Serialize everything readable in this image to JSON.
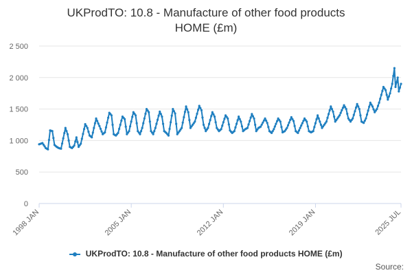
{
  "title_line1": "UKProdTO: 10.8 - Manufacture of other food products",
  "title_line2": "HOME (£m)",
  "legend_label": "UKProdTO: 10.8 - Manufacture of other food products HOME (£m)",
  "source_label": "Source:",
  "colors": {
    "series": "#1f7fc0",
    "grid": "#e6e6e6",
    "axis": "#ccd6eb"
  },
  "chart_data": {
    "type": "line",
    "title": "UKProdTO: 10.8 - Manufacture of other food products HOME (£m)",
    "xlabel": "",
    "ylabel": "",
    "ylim": [
      0,
      2500
    ],
    "yticks": [
      0,
      500,
      1000,
      1500,
      2000,
      2500
    ],
    "ytick_labels": [
      "0",
      "500",
      "1 000",
      "1 500",
      "2 000",
      "2 500"
    ],
    "x_start": "1998 JAN",
    "x_end": "2025 JUL",
    "xticks": [
      {
        "label": "1998 JAN",
        "month_index": 0
      },
      {
        "label": "2005 JAN",
        "month_index": 84
      },
      {
        "label": "2012 JAN",
        "month_index": 168
      },
      {
        "label": "2019 JAN",
        "month_index": 252
      },
      {
        "label": "2025 JUL",
        "month_index": 330
      }
    ],
    "series": [
      {
        "name": "UKProdTO: 10.8 - Manufacture of other food products HOME (£m)",
        "frequency": "monthly",
        "keypoints": [
          [
            0,
            940
          ],
          [
            3,
            960
          ],
          [
            6,
            880
          ],
          [
            8,
            860
          ],
          [
            10,
            1160
          ],
          [
            12,
            1150
          ],
          [
            14,
            930
          ],
          [
            16,
            900
          ],
          [
            18,
            880
          ],
          [
            20,
            870
          ],
          [
            24,
            1200
          ],
          [
            26,
            1100
          ],
          [
            28,
            900
          ],
          [
            30,
            880
          ],
          [
            32,
            920
          ],
          [
            34,
            1050
          ],
          [
            36,
            900
          ],
          [
            38,
            950
          ],
          [
            42,
            1260
          ],
          [
            44,
            1200
          ],
          [
            46,
            1080
          ],
          [
            48,
            1050
          ],
          [
            52,
            1350
          ],
          [
            55,
            1230
          ],
          [
            58,
            1100
          ],
          [
            60,
            1130
          ],
          [
            64,
            1440
          ],
          [
            66,
            1400
          ],
          [
            68,
            1100
          ],
          [
            70,
            1080
          ],
          [
            72,
            1120
          ],
          [
            76,
            1380
          ],
          [
            78,
            1340
          ],
          [
            80,
            1100
          ],
          [
            82,
            1150
          ],
          [
            86,
            1450
          ],
          [
            88,
            1400
          ],
          [
            90,
            1150
          ],
          [
            92,
            1100
          ],
          [
            94,
            1200
          ],
          [
            98,
            1500
          ],
          [
            100,
            1450
          ],
          [
            102,
            1150
          ],
          [
            104,
            1100
          ],
          [
            106,
            1200
          ],
          [
            110,
            1460
          ],
          [
            112,
            1380
          ],
          [
            114,
            1150
          ],
          [
            116,
            1120
          ],
          [
            118,
            1080
          ],
          [
            122,
            1500
          ],
          [
            124,
            1430
          ],
          [
            126,
            1100
          ],
          [
            128,
            1150
          ],
          [
            130,
            1200
          ],
          [
            134,
            1540
          ],
          [
            136,
            1450
          ],
          [
            138,
            1200
          ],
          [
            140,
            1250
          ],
          [
            142,
            1300
          ],
          [
            146,
            1550
          ],
          [
            148,
            1480
          ],
          [
            150,
            1250
          ],
          [
            152,
            1150
          ],
          [
            154,
            1200
          ],
          [
            158,
            1450
          ],
          [
            160,
            1380
          ],
          [
            162,
            1200
          ],
          [
            164,
            1150
          ],
          [
            166,
            1180
          ],
          [
            170,
            1400
          ],
          [
            172,
            1350
          ],
          [
            174,
            1160
          ],
          [
            176,
            1120
          ],
          [
            178,
            1150
          ],
          [
            182,
            1380
          ],
          [
            184,
            1300
          ],
          [
            186,
            1150
          ],
          [
            188,
            1180
          ],
          [
            190,
            1200
          ],
          [
            194,
            1420
          ],
          [
            196,
            1350
          ],
          [
            198,
            1150
          ],
          [
            200,
            1200
          ],
          [
            202,
            1220
          ],
          [
            206,
            1350
          ],
          [
            208,
            1280
          ],
          [
            210,
            1150
          ],
          [
            212,
            1120
          ],
          [
            214,
            1180
          ],
          [
            218,
            1350
          ],
          [
            220,
            1300
          ],
          [
            222,
            1130
          ],
          [
            224,
            1150
          ],
          [
            226,
            1200
          ],
          [
            230,
            1370
          ],
          [
            232,
            1310
          ],
          [
            234,
            1150
          ],
          [
            236,
            1120
          ],
          [
            238,
            1200
          ],
          [
            242,
            1350
          ],
          [
            244,
            1300
          ],
          [
            246,
            1150
          ],
          [
            248,
            1130
          ],
          [
            250,
            1150
          ],
          [
            254,
            1400
          ],
          [
            256,
            1300
          ],
          [
            258,
            1200
          ],
          [
            260,
            1250
          ],
          [
            262,
            1300
          ],
          [
            266,
            1540
          ],
          [
            268,
            1460
          ],
          [
            270,
            1300
          ],
          [
            272,
            1350
          ],
          [
            274,
            1400
          ],
          [
            278,
            1560
          ],
          [
            280,
            1500
          ],
          [
            282,
            1350
          ],
          [
            284,
            1300
          ],
          [
            286,
            1350
          ],
          [
            290,
            1580
          ],
          [
            292,
            1500
          ],
          [
            294,
            1300
          ],
          [
            296,
            1280
          ],
          [
            298,
            1350
          ],
          [
            302,
            1600
          ],
          [
            304,
            1540
          ],
          [
            306,
            1450
          ],
          [
            308,
            1500
          ],
          [
            310,
            1600
          ],
          [
            314,
            1850
          ],
          [
            316,
            1800
          ],
          [
            318,
            1650
          ],
          [
            320,
            1750
          ],
          [
            322,
            1900
          ],
          [
            324,
            2150
          ],
          [
            325,
            1850
          ],
          [
            327,
            2000
          ],
          [
            328,
            1780
          ],
          [
            330,
            1900
          ]
        ]
      }
    ]
  }
}
